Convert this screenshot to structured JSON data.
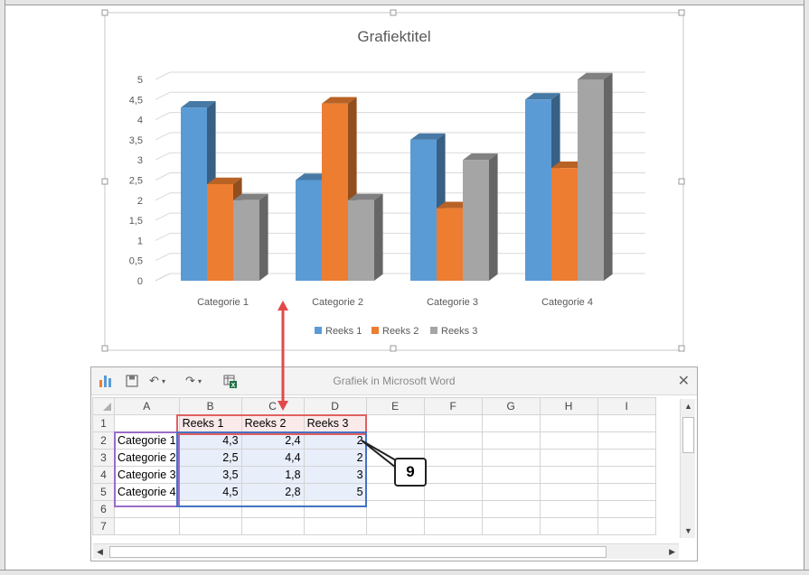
{
  "chart_data": {
    "type": "bar",
    "title": "Grafiektitel",
    "categories": [
      "Categorie 1",
      "Categorie 2",
      "Categorie 3",
      "Categorie 4"
    ],
    "series": [
      {
        "name": "Reeks 1",
        "values": [
          4.3,
          2.5,
          3.5,
          4.5
        ],
        "color": "#5b9bd5"
      },
      {
        "name": "Reeks 2",
        "values": [
          2.4,
          4.4,
          1.8,
          2.8
        ],
        "color": "#ed7d31"
      },
      {
        "name": "Reeks 3",
        "values": [
          2,
          2,
          3,
          5
        ],
        "color": "#a5a5a5"
      }
    ],
    "ylim": [
      0,
      5
    ],
    "yticks": [
      "0",
      "0,5",
      "1",
      "1,5",
      "2",
      "2,5",
      "3",
      "3,5",
      "4",
      "4,5",
      "5"
    ],
    "grid": true,
    "legend": "bottom",
    "style": "3d-clustered-column"
  },
  "sheet": {
    "window_title": "Grafiek in Microsoft Word",
    "columns": [
      "A",
      "B",
      "C",
      "D",
      "E",
      "F",
      "G",
      "H",
      "I"
    ],
    "rows": [
      "1",
      "2",
      "3",
      "4",
      "5",
      "6",
      "7"
    ],
    "cells": [
      [
        "",
        "Reeks 1",
        "Reeks 2",
        "Reeks 3"
      ],
      [
        "Categorie 1",
        "4,3",
        "2,4",
        "2"
      ],
      [
        "Categorie 2",
        "2,5",
        "4,4",
        "2"
      ],
      [
        "Categorie 3",
        "3,5",
        "1,8",
        "3"
      ],
      [
        "Categorie 4",
        "4,5",
        "2,8",
        "5"
      ]
    ]
  },
  "callout": {
    "label": "9"
  },
  "icons": {
    "chart": "bar-chart-icon",
    "save": "save-icon",
    "undo": "undo-icon",
    "redo": "redo-icon",
    "excel": "excel-icon",
    "close": "close-icon"
  }
}
